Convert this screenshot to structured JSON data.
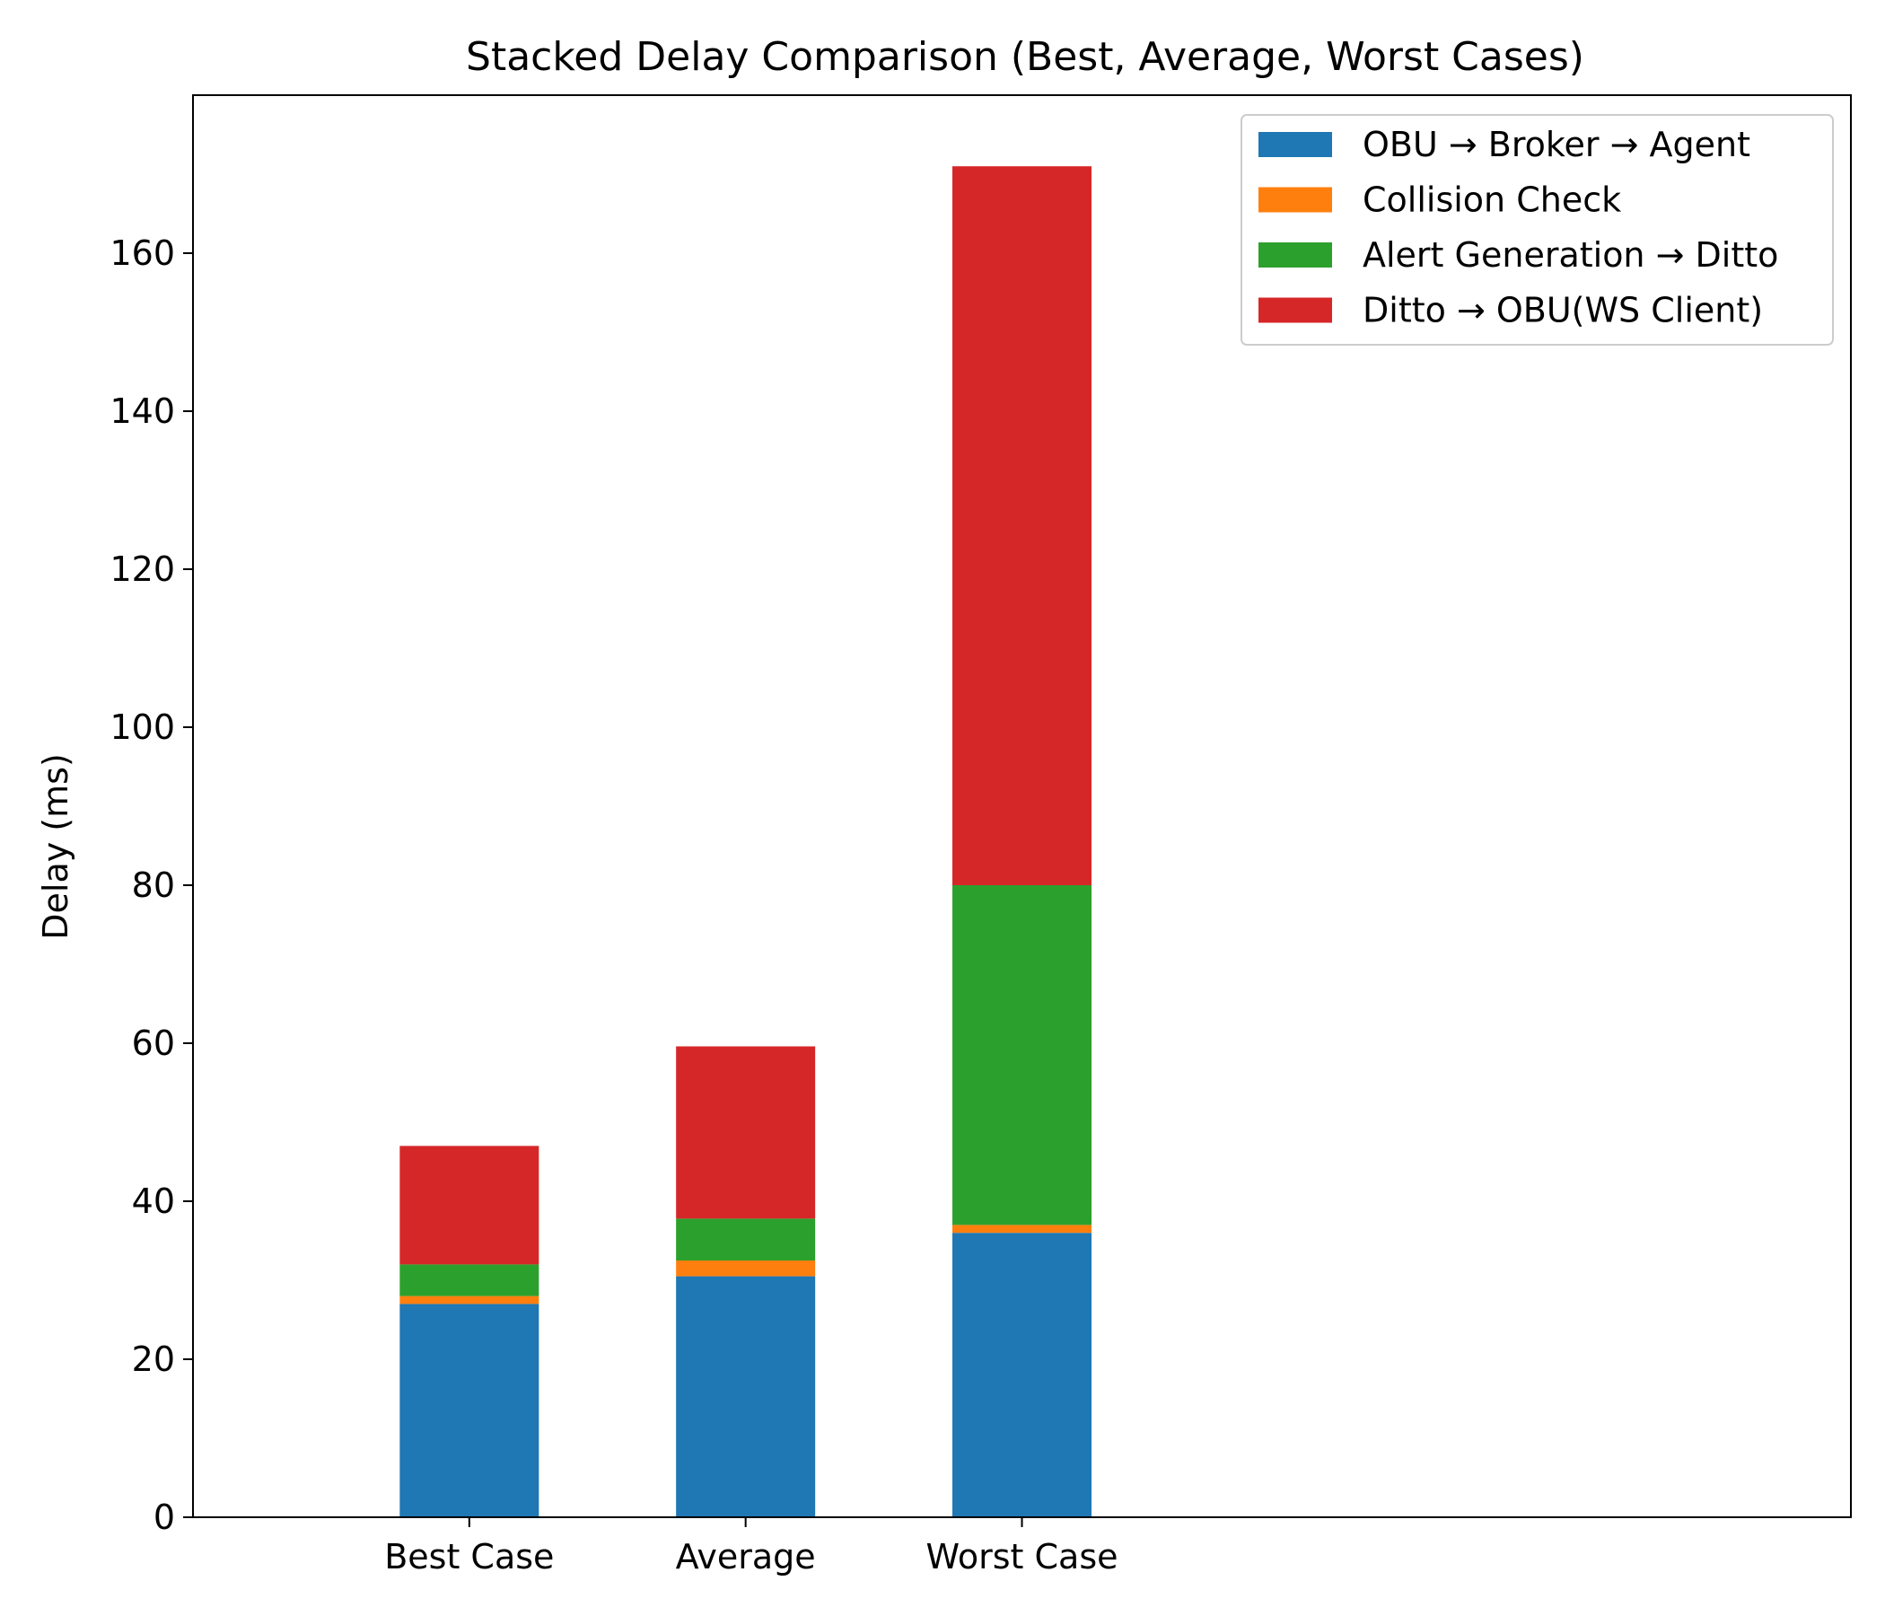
{
  "chart_data": {
    "type": "bar",
    "stacked": true,
    "title": "Stacked Delay Comparison (Best, Average, Worst Cases)",
    "xlabel": "",
    "ylabel": "Delay (ms)",
    "ylim": [
      0,
      180
    ],
    "yticks": [
      0,
      20,
      40,
      60,
      80,
      100,
      120,
      140,
      160
    ],
    "categories": [
      "Best Case",
      "Average",
      "Worst Case"
    ],
    "x_extra_slots": 3,
    "grid": false,
    "legend_position": "upper-right",
    "series": [
      {
        "name": "OBU → Broker → Agent",
        "color": "#1f77b4",
        "values": [
          27,
          30.5,
          36
        ]
      },
      {
        "name": "Collision Check",
        "color": "#ff7f0e",
        "values": [
          1,
          2,
          1
        ]
      },
      {
        "name": "Alert Generation → Ditto",
        "color": "#2ca02c",
        "values": [
          4,
          5.3,
          43
        ]
      },
      {
        "name": "Ditto → OBU(WS Client)",
        "color": "#d62728",
        "values": [
          15,
          21.8,
          91
        ]
      }
    ]
  }
}
